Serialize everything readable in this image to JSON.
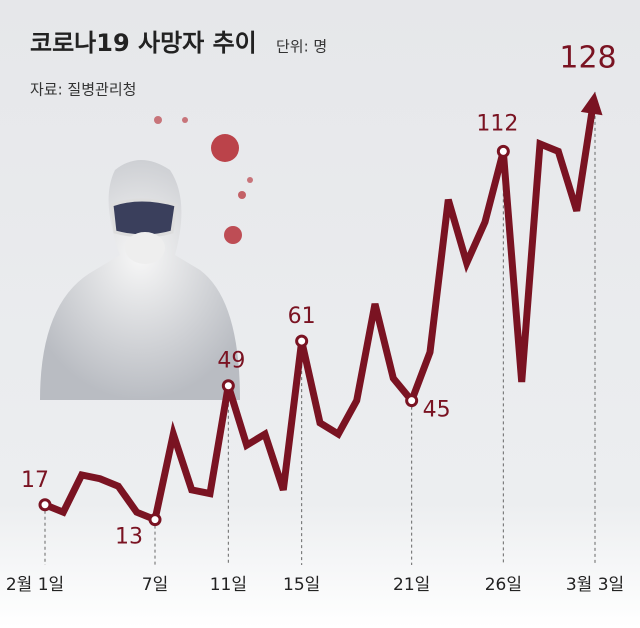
{
  "chart_data": {
    "type": "line",
    "title": "코로나19 사망자 추이",
    "unit": "단위: 명",
    "source": "자료: 질병관리청",
    "categories": [
      "2월 1일",
      null,
      null,
      null,
      null,
      null,
      "7일",
      null,
      null,
      null,
      "11일",
      null,
      null,
      null,
      "15일",
      null,
      null,
      null,
      null,
      null,
      "21일",
      null,
      null,
      null,
      null,
      "26일",
      null,
      null,
      null,
      null,
      "3월 3일"
    ],
    "values": [
      17,
      15,
      25,
      24,
      22,
      15,
      13,
      36,
      21,
      20,
      49,
      33,
      36,
      21,
      61,
      39,
      36,
      45,
      71,
      51,
      45,
      58,
      99,
      82,
      93,
      112,
      50,
      114,
      112,
      96,
      128
    ],
    "color": "#7a1322"
  }
}
